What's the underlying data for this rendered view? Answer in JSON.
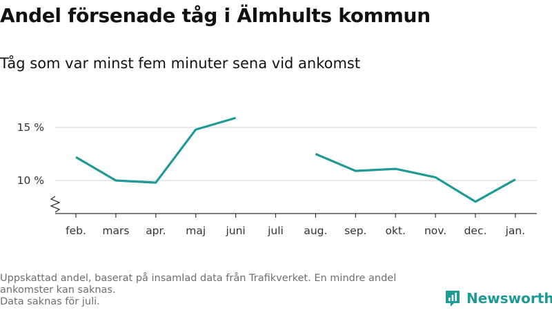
{
  "title": "Andel försenade tåg i Älmhults kommun",
  "subtitle": "Tåg som var minst fem minuter sena vid ankomst",
  "footer": {
    "line1": "Uppskattad andel, baserat på insamlad data från Trafikverket. En mindre andel ankomster kan saknas.",
    "line2": "Data saknas för juli."
  },
  "brand": {
    "name": "Newsworthy",
    "color": "#1d9a96"
  },
  "chart_data": {
    "type": "line",
    "title": "Andel försenade tåg i Älmhults kommun",
    "subtitle": "Tåg som var minst fem minuter sena vid ankomst",
    "categories": [
      "feb.",
      "mars",
      "apr.",
      "maj",
      "juni",
      "juli",
      "aug.",
      "sep.",
      "okt.",
      "nov.",
      "dec.",
      "jan."
    ],
    "series": [
      {
        "values": [
          12.2,
          10.0,
          9.8,
          14.8,
          15.9,
          null,
          12.5,
          10.9,
          11.1,
          10.3,
          8.0,
          10.1
        ]
      }
    ],
    "y_ticks": [
      10,
      15
    ],
    "y_tick_labels": [
      "10 %",
      "15 %"
    ],
    "ylim": [
      7,
      17
    ],
    "axis_break": true,
    "grid": "horizontal",
    "line_color": "#1d9a96"
  }
}
